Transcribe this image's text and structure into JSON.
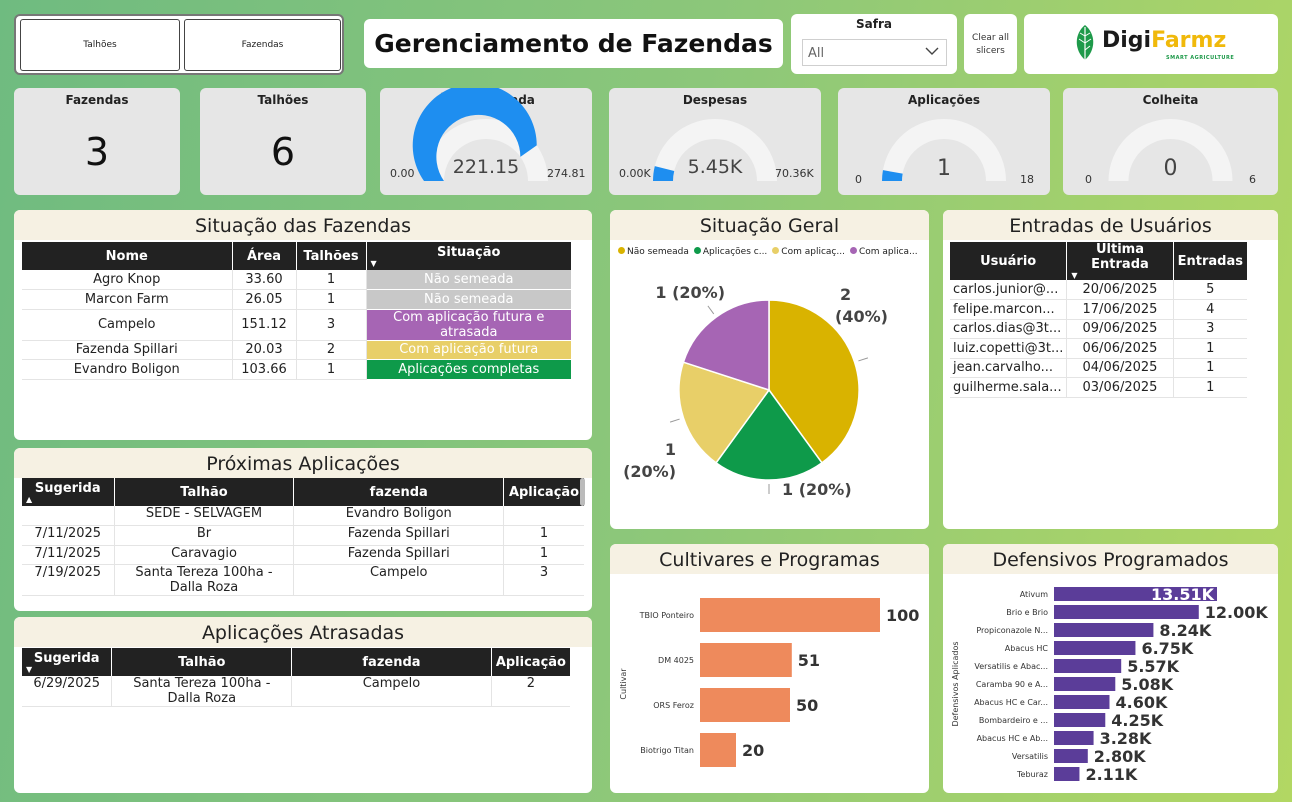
{
  "nav": {
    "btn1": "Talhões",
    "btn2": "Fazendas"
  },
  "header": {
    "title": "Gerenciamento de Fazendas"
  },
  "slicer": {
    "label": "Safra",
    "value": "All"
  },
  "clear": {
    "label1": "Clear all",
    "label2": "slicers"
  },
  "logo": {
    "part1": "Digi",
    "part2": "Farmz",
    "tagline": "SMART AGRICULTURE"
  },
  "kpis": {
    "fazendas": {
      "title": "Fazendas",
      "value": "3"
    },
    "talhoes": {
      "title": "Talhões",
      "value": "6"
    },
    "area": {
      "title": "Área Semeada",
      "value": "221.15",
      "min": "0.00",
      "max": "274.81",
      "fraction": 0.805
    },
    "despesas": {
      "title": "Despesas",
      "value": "5.45K",
      "min": "0.00K",
      "max": "70.36K",
      "fraction": 0.077
    },
    "aplicacoes": {
      "title": "Aplicações",
      "value": "1",
      "min": "0",
      "max": "18",
      "fraction": 0.056
    },
    "colheita": {
      "title": "Colheita",
      "value": "0",
      "min": "0",
      "max": "6",
      "fraction": 0
    }
  },
  "situacao": {
    "title": "Situação das Fazendas",
    "headers": [
      "Nome",
      "Área",
      "Talhões",
      "Situação"
    ],
    "rows": [
      {
        "nome": "Agro Knop",
        "area": "33.60",
        "talhoes": "1",
        "situacao": "Não semeada"
      },
      {
        "nome": "Marcon Farm",
        "area": "26.05",
        "talhoes": "1",
        "situacao": "Não semeada"
      },
      {
        "nome": "Campelo",
        "area": "151.12",
        "talhoes": "3",
        "situacao": "Com aplicação futura e atrasada"
      },
      {
        "nome": "Fazenda Spillari",
        "area": "20.03",
        "talhoes": "2",
        "situacao": "Com aplicação futura"
      },
      {
        "nome": "Evandro Boligon",
        "area": "103.66",
        "talhoes": "1",
        "situacao": "Aplicações completas"
      }
    ],
    "colors": {
      "Não semeada": "#c8c8c8",
      "Com aplicação futura e atrasada": "#a665b4",
      "Com aplicação futura": "#e8cf68",
      "Aplicações completas": "#0e9a4a"
    }
  },
  "proximas": {
    "title": "Próximas Aplicações",
    "headers": [
      "Sugerida",
      "Talhão",
      "fazenda",
      "Aplicação"
    ],
    "rows": [
      {
        "sugerida": "",
        "talhao": "SEDE - SELVAGEM",
        "fazenda": "Evandro Boligon",
        "aplicacao": ""
      },
      {
        "sugerida": "7/11/2025",
        "talhao": "Br",
        "fazenda": "Fazenda Spillari",
        "aplicacao": "1"
      },
      {
        "sugerida": "7/11/2025",
        "talhao": "Caravagio",
        "fazenda": "Fazenda Spillari",
        "aplicacao": "1"
      },
      {
        "sugerida": "7/19/2025",
        "talhao": "Santa Tereza 100ha - Dalla Roza",
        "fazenda": "Campelo",
        "aplicacao": "3"
      }
    ]
  },
  "atrasadas": {
    "title": "Aplicações Atrasadas",
    "headers": [
      "Sugerida",
      "Talhão",
      "fazenda",
      "Aplicação"
    ],
    "rows": [
      {
        "sugerida": "6/29/2025",
        "talhao": "Santa Tereza 100ha - Dalla Roza",
        "fazenda": "Campelo",
        "aplicacao": "2"
      }
    ]
  },
  "usuarios": {
    "title": "Entradas de Usuários",
    "headers": [
      "Usuário",
      "Última Entrada",
      "Entradas"
    ],
    "rows": [
      {
        "usuario": "carlos.junior@...",
        "ultima": "20/06/2025",
        "entradas": "5"
      },
      {
        "usuario": "felipe.marcon...",
        "ultima": "17/06/2025",
        "entradas": "4"
      },
      {
        "usuario": "carlos.dias@3t...",
        "ultima": "09/06/2025",
        "entradas": "3"
      },
      {
        "usuario": "luiz.copetti@3t...",
        "ultima": "06/06/2025",
        "entradas": "1"
      },
      {
        "usuario": "jean.carvalho...",
        "ultima": "04/06/2025",
        "entradas": "1"
      },
      {
        "usuario": "guilherme.sala...",
        "ultima": "03/06/2025",
        "entradas": "1"
      }
    ]
  },
  "chart_data": [
    {
      "type": "pie",
      "title": "Situação Geral",
      "legend_position": "top",
      "categories": [
        "Não semeada",
        "Aplicações c...",
        "Com aplicaç...",
        "Com aplica..."
      ],
      "values": [
        2,
        1,
        1,
        1
      ],
      "labels": [
        "2 (40%)",
        "1 (20%)",
        "1 (20%)",
        "1 (20%)"
      ],
      "colors": [
        "#d9b300",
        "#0e9a4a",
        "#e8cf68",
        "#a665b4"
      ]
    },
    {
      "type": "bar",
      "orientation": "horizontal",
      "title": "Cultivares e Programas",
      "ylabel": "Cultivar",
      "categories": [
        "TBIO Ponteiro",
        "DM 4025",
        "ORS Feroz",
        "Biotrigo Titan"
      ],
      "values": [
        100,
        51,
        50,
        20
      ],
      "value_labels": [
        "100",
        "51",
        "50",
        "20"
      ],
      "color": "#ee8a5c",
      "xlim": [
        0,
        100
      ]
    },
    {
      "type": "bar",
      "orientation": "horizontal",
      "title": "Defensivos Programados",
      "ylabel": "Defensivos Aplicados",
      "categories": [
        "Ativum",
        "Brio e Brio",
        "Propiconazole N...",
        "Abacus HC",
        "Versatilis e Abac...",
        "Caramba 90 e A...",
        "Abacus HC e Car...",
        "Bombardeiro e ...",
        "Abacus HC e Ab...",
        "Versatilis",
        "Teburaz"
      ],
      "values": [
        13.51,
        12.0,
        8.24,
        6.75,
        5.57,
        5.08,
        4.6,
        4.25,
        3.28,
        2.8,
        2.11
      ],
      "value_labels": [
        "13.51K",
        "12.00K",
        "8.24K",
        "6.75K",
        "5.57K",
        "5.08K",
        "4.60K",
        "4.25K",
        "3.28K",
        "2.80K",
        "2.11K"
      ],
      "unit": "K",
      "color": "#5b3d99",
      "xlim": [
        0,
        13.51
      ]
    }
  ]
}
